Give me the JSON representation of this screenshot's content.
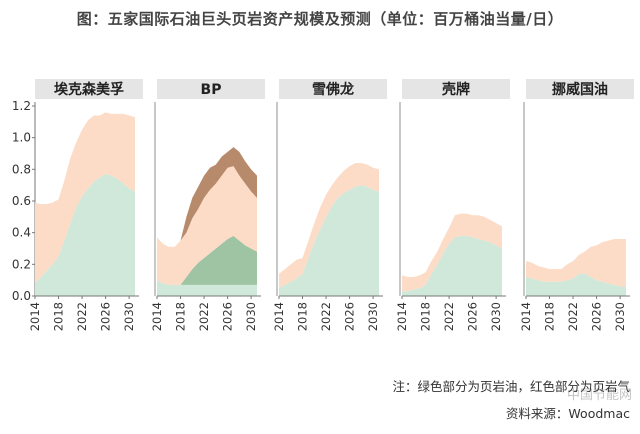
{
  "title": "图：五家国际石油巨头页岩资产规模及预测（单位：百万桶油当量/日）",
  "note": "注：绿色部分为页岩油，红色部分为页岩气",
  "source": "资料来源：Woodmac",
  "watermark": "中国节能网",
  "colors": {
    "oil": "#cfe8da",
    "gas": "#fcdcc6",
    "bp_gas_dark": "#b88a6c",
    "bp_oil_dark": "#9fc4a4",
    "panel_header": "#e5e5e5",
    "axis": "#777777",
    "text": "#333333"
  },
  "chart_data": {
    "type": "area",
    "stacked": true,
    "ylim": [
      0,
      1.2
    ],
    "yticks": [
      "0.0",
      "0.2",
      "0.4",
      "0.6",
      "0.8",
      "1.0",
      "1.2"
    ],
    "xticks": [
      "2014",
      "2018",
      "2022",
      "2026",
      "2030"
    ],
    "x": [
      2014,
      2015,
      2016,
      2017,
      2018,
      2019,
      2020,
      2021,
      2022,
      2023,
      2024,
      2025,
      2026,
      2027,
      2028,
      2029,
      2030,
      2031
    ],
    "legend": [
      "页岩油",
      "页岩气"
    ],
    "panels": [
      {
        "name": "埃克森美孚",
        "series": [
          {
            "name": "页岩油",
            "role": "oil",
            "values": [
              0.08,
              0.12,
              0.16,
              0.2,
              0.25,
              0.35,
              0.46,
              0.56,
              0.63,
              0.68,
              0.72,
              0.75,
              0.77,
              0.76,
              0.74,
              0.71,
              0.68,
              0.66
            ]
          },
          {
            "name": "页岩气",
            "role": "gas",
            "values": [
              0.51,
              0.46,
              0.42,
              0.39,
              0.36,
              0.38,
              0.41,
              0.41,
              0.42,
              0.43,
              0.42,
              0.39,
              0.39,
              0.39,
              0.41,
              0.44,
              0.46,
              0.47
            ]
          }
        ]
      },
      {
        "name": "BP",
        "series": [
          {
            "name": "页岩油",
            "role": "oil",
            "values": [
              0.1,
              0.08,
              0.07,
              0.07,
              0.07,
              0.07,
              0.07,
              0.07,
              0.07,
              0.07,
              0.07,
              0.07,
              0.07,
              0.07,
              0.07,
              0.07,
              0.07,
              0.07
            ]
          },
          {
            "name": "页岩油(新增)",
            "role": "bp_oil_dark",
            "values": [
              0.0,
              0.0,
              0.0,
              0.0,
              0.0,
              0.05,
              0.1,
              0.14,
              0.17,
              0.2,
              0.23,
              0.26,
              0.29,
              0.31,
              0.28,
              0.25,
              0.23,
              0.21
            ]
          },
          {
            "name": "页岩气",
            "role": "gas",
            "values": [
              0.27,
              0.25,
              0.24,
              0.24,
              0.28,
              0.28,
              0.32,
              0.34,
              0.38,
              0.4,
              0.41,
              0.43,
              0.45,
              0.44,
              0.41,
              0.39,
              0.36,
              0.34
            ]
          },
          {
            "name": "页岩气(新增)",
            "role": "bp_gas_dark",
            "values": [
              0.0,
              0.0,
              0.0,
              0.0,
              0.0,
              0.1,
              0.13,
              0.14,
              0.14,
              0.14,
              0.12,
              0.12,
              0.1,
              0.12,
              0.15,
              0.14,
              0.14,
              0.14
            ]
          }
        ]
      },
      {
        "name": "雪佛龙",
        "series": [
          {
            "name": "页岩油",
            "role": "oil",
            "values": [
              0.05,
              0.07,
              0.09,
              0.11,
              0.14,
              0.24,
              0.34,
              0.42,
              0.5,
              0.57,
              0.62,
              0.65,
              0.67,
              0.69,
              0.7,
              0.69,
              0.67,
              0.66
            ]
          },
          {
            "name": "页岩气",
            "role": "gas",
            "values": [
              0.09,
              0.1,
              0.11,
              0.12,
              0.1,
              0.11,
              0.12,
              0.14,
              0.14,
              0.13,
              0.13,
              0.14,
              0.15,
              0.15,
              0.14,
              0.14,
              0.14,
              0.14
            ]
          }
        ]
      },
      {
        "name": "壳牌",
        "series": [
          {
            "name": "页岩油",
            "role": "oil",
            "values": [
              0.03,
              0.03,
              0.04,
              0.05,
              0.07,
              0.14,
              0.2,
              0.27,
              0.33,
              0.37,
              0.38,
              0.38,
              0.37,
              0.36,
              0.35,
              0.34,
              0.32,
              0.3
            ]
          },
          {
            "name": "页岩气",
            "role": "gas",
            "values": [
              0.1,
              0.09,
              0.08,
              0.08,
              0.08,
              0.08,
              0.08,
              0.09,
              0.1,
              0.14,
              0.14,
              0.14,
              0.14,
              0.15,
              0.15,
              0.14,
              0.14,
              0.14
            ]
          }
        ]
      },
      {
        "name": "挪威国油",
        "series": [
          {
            "name": "页岩油",
            "role": "oil",
            "values": [
              0.12,
              0.11,
              0.1,
              0.09,
              0.09,
              0.09,
              0.09,
              0.1,
              0.11,
              0.14,
              0.14,
              0.12,
              0.1,
              0.09,
              0.08,
              0.07,
              0.06,
              0.06
            ]
          },
          {
            "name": "页岩气",
            "role": "gas",
            "values": [
              0.1,
              0.1,
              0.09,
              0.09,
              0.08,
              0.08,
              0.08,
              0.1,
              0.11,
              0.12,
              0.14,
              0.19,
              0.22,
              0.25,
              0.27,
              0.29,
              0.3,
              0.3
            ]
          }
        ]
      }
    ]
  }
}
